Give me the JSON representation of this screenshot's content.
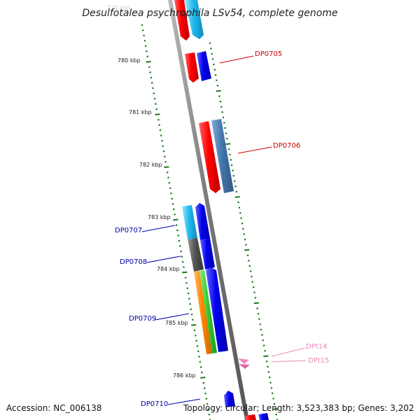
{
  "title": "Desulfotalea psychrophila LSv54, complete genome",
  "footer": {
    "accession": "Accession: NC_006138",
    "topology": "Topology: circular; Length: 3,523,383 bp; Genes: 3,202"
  },
  "ruler": {
    "faded_label": "779 kbp",
    "labels": [
      "780 kbp",
      "781 kbp",
      "782 kbp",
      "783 kbp",
      "784 kbp",
      "785 kbp",
      "786 kbp"
    ]
  },
  "genes": [
    {
      "label": "DP0705",
      "color": "#cc0000"
    },
    {
      "label": "DP0706",
      "color": "#cc0000"
    },
    {
      "label": "DP0707",
      "color": "#0000aa"
    },
    {
      "label": "DP0708",
      "color": "#0000aa"
    },
    {
      "label": "DP0709",
      "color": "#0000aa"
    },
    {
      "label": "DP0710",
      "color": "#0000aa"
    },
    {
      "label": "DPt14",
      "color": "#ee88bb"
    },
    {
      "label": "DPt15",
      "color": "#ee88bb"
    }
  ],
  "colors": {
    "backbone": "#777777",
    "tick": "#1a7a1a",
    "feature_red": "#ee0000",
    "feature_blue": "#0000ee",
    "feature_cyan": "#22bbee",
    "feature_steel": "#4477aa",
    "feature_gray": "#555555",
    "feature_orange": "#ff8800",
    "feature_green": "#33cc33",
    "feature_pink": "#ee88bb"
  }
}
